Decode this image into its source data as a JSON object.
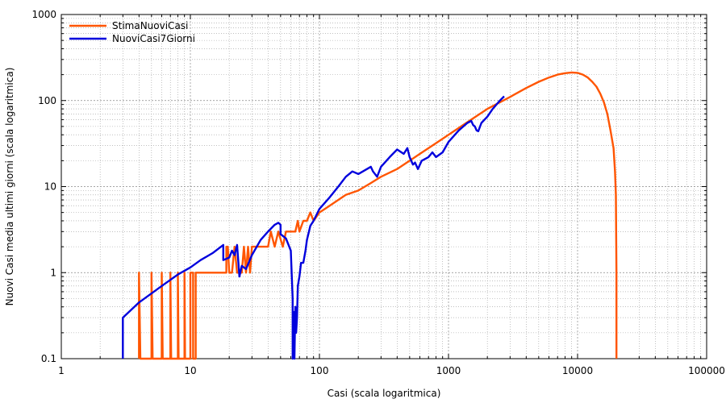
{
  "chart_data": {
    "type": "line",
    "title": "",
    "xlabel": "Casi (scala logaritmica)",
    "ylabel": "Nuovi Casi media ultimi giorni (scala logaritmica)",
    "xscale": "log",
    "yscale": "log",
    "xlim": [
      1,
      100000
    ],
    "ylim": [
      0.1,
      1000
    ],
    "grid": true,
    "legend_position": "top-left",
    "x_tick_labels": [
      "1",
      "10",
      "100",
      "1000",
      "10000",
      "100000"
    ],
    "y_tick_labels": [
      "0.1",
      "1",
      "10",
      "100",
      "1000"
    ],
    "series": [
      {
        "name": "StimaNuoviCasi",
        "color": "#ff5500",
        "points": [
          [
            4,
            0.1
          ],
          [
            4,
            1
          ],
          [
            4.1,
            0.1
          ],
          [
            5,
            0.1
          ],
          [
            5,
            1
          ],
          [
            5.1,
            0.1
          ],
          [
            6,
            0.1
          ],
          [
            6,
            1
          ],
          [
            6.1,
            0.1
          ],
          [
            7,
            0.1
          ],
          [
            7,
            1
          ],
          [
            7.1,
            0.1
          ],
          [
            8,
            0.1
          ],
          [
            8,
            1
          ],
          [
            8.1,
            0.1
          ],
          [
            9,
            0.1
          ],
          [
            9,
            1
          ],
          [
            9.1,
            0.1
          ],
          [
            10,
            0.1
          ],
          [
            10,
            1
          ],
          [
            10.5,
            1
          ],
          [
            10.5,
            0.1
          ],
          [
            11,
            0.1
          ],
          [
            11,
            1
          ],
          [
            19,
            1
          ],
          [
            19,
            2
          ],
          [
            19.5,
            2
          ],
          [
            20,
            1
          ],
          [
            21,
            1
          ],
          [
            22,
            2
          ],
          [
            23,
            1
          ],
          [
            25,
            1
          ],
          [
            26,
            2
          ],
          [
            27,
            1
          ],
          [
            28,
            2
          ],
          [
            29,
            1
          ],
          [
            30,
            2
          ],
          [
            40,
            2
          ],
          [
            42,
            3
          ],
          [
            45,
            2
          ],
          [
            48,
            3
          ],
          [
            52,
            2
          ],
          [
            55,
            3
          ],
          [
            65,
            3
          ],
          [
            68,
            4
          ],
          [
            70,
            3
          ],
          [
            75,
            4
          ],
          [
            80,
            4
          ],
          [
            85,
            5
          ],
          [
            90,
            4
          ],
          [
            100,
            5
          ],
          [
            120,
            6
          ],
          [
            140,
            7
          ],
          [
            160,
            8
          ],
          [
            200,
            9
          ],
          [
            250,
            11
          ],
          [
            300,
            13
          ],
          [
            400,
            16
          ],
          [
            500,
            20
          ],
          [
            600,
            24
          ],
          [
            800,
            32
          ],
          [
            1000,
            40
          ],
          [
            1500,
            60
          ],
          [
            2000,
            80
          ],
          [
            3000,
            110
          ],
          [
            4000,
            140
          ],
          [
            5000,
            165
          ],
          [
            6000,
            185
          ],
          [
            7000,
            200
          ],
          [
            8000,
            208
          ],
          [
            9000,
            212
          ],
          [
            10000,
            210
          ],
          [
            11000,
            200
          ],
          [
            12000,
            185
          ],
          [
            13000,
            165
          ],
          [
            14000,
            145
          ],
          [
            15000,
            120
          ],
          [
            16000,
            95
          ],
          [
            17000,
            70
          ],
          [
            18000,
            45
          ],
          [
            19000,
            28
          ],
          [
            19500,
            15
          ],
          [
            19800,
            8
          ],
          [
            20000,
            1
          ],
          [
            20000,
            0.1
          ]
        ]
      },
      {
        "name": "NuoviCasi7Giorni",
        "color": "#0000dd",
        "points": [
          [
            3,
            0.1
          ],
          [
            3,
            0.3
          ],
          [
            4,
            0.45
          ],
          [
            6,
            0.7
          ],
          [
            8,
            0.95
          ],
          [
            10,
            1.15
          ],
          [
            12,
            1.4
          ],
          [
            15,
            1.7
          ],
          [
            18,
            2.1
          ],
          [
            18,
            1.4
          ],
          [
            20,
            1.5
          ],
          [
            21,
            1.8
          ],
          [
            22,
            1.6
          ],
          [
            23,
            2.1
          ],
          [
            24,
            0.9
          ],
          [
            25,
            1.2
          ],
          [
            27,
            1.1
          ],
          [
            30,
            1.6
          ],
          [
            35,
            2.4
          ],
          [
            40,
            3.0
          ],
          [
            45,
            3.6
          ],
          [
            48,
            3.8
          ],
          [
            50,
            3.6
          ],
          [
            50,
            2.8
          ],
          [
            55,
            2.5
          ],
          [
            60,
            1.8
          ],
          [
            62,
            0.5
          ],
          [
            62,
            0.1
          ],
          [
            63,
            0.35
          ],
          [
            64,
            0.1
          ],
          [
            65,
            0.4
          ],
          [
            66,
            0.2
          ],
          [
            67,
            0.3
          ],
          [
            68,
            0.7
          ],
          [
            70,
            0.9
          ],
          [
            72,
            1.3
          ],
          [
            75,
            1.3
          ],
          [
            78,
            1.8
          ],
          [
            80,
            2.4
          ],
          [
            85,
            3.5
          ],
          [
            90,
            4.0
          ],
          [
            100,
            5.5
          ],
          [
            120,
            7.5
          ],
          [
            140,
            10
          ],
          [
            160,
            13
          ],
          [
            180,
            15
          ],
          [
            200,
            14
          ],
          [
            250,
            17
          ],
          [
            260,
            15
          ],
          [
            280,
            13
          ],
          [
            300,
            17
          ],
          [
            350,
            22
          ],
          [
            400,
            27
          ],
          [
            450,
            24
          ],
          [
            480,
            28
          ],
          [
            500,
            22
          ],
          [
            530,
            18
          ],
          [
            550,
            19
          ],
          [
            580,
            16
          ],
          [
            620,
            20
          ],
          [
            700,
            22
          ],
          [
            750,
            25
          ],
          [
            800,
            22
          ],
          [
            900,
            25
          ],
          [
            1000,
            33
          ],
          [
            1200,
            45
          ],
          [
            1400,
            55
          ],
          [
            1500,
            58
          ],
          [
            1550,
            52
          ],
          [
            1600,
            50
          ],
          [
            1650,
            45
          ],
          [
            1700,
            44
          ],
          [
            1800,
            55
          ],
          [
            2000,
            65
          ],
          [
            2200,
            80
          ],
          [
            2500,
            100
          ],
          [
            2700,
            112
          ]
        ]
      }
    ]
  }
}
